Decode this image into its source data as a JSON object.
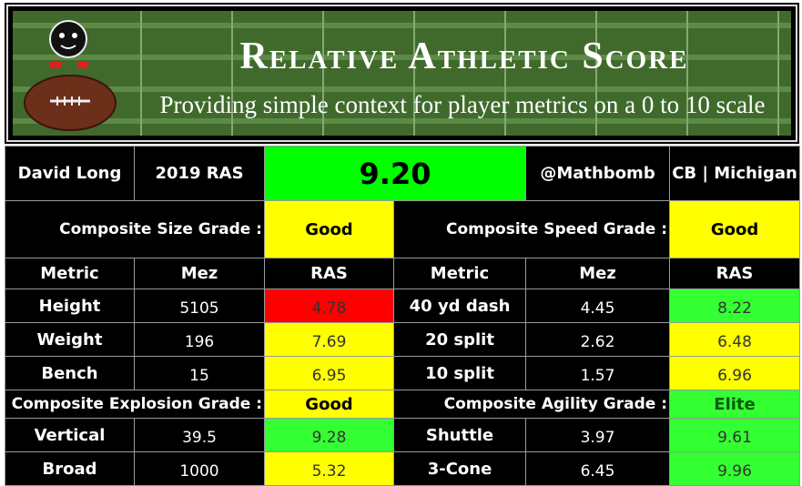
{
  "header": {
    "title": "Relative Athletic Score",
    "subtitle": "Providing simple context for player metrics on a 0 to 10 scale"
  },
  "summary": {
    "player": "David Long",
    "label": "2019 RAS",
    "score": "9.20",
    "author": "@Mathbomb",
    "position": "CB | Michigan"
  },
  "grades": [
    {
      "label": "Composite Size Grade :",
      "value": "Good"
    },
    {
      "label": "Composite Speed Grade :",
      "value": "Good"
    },
    {
      "label": "Composite Explosion Grade :",
      "value": "Good"
    },
    {
      "label": "Composite Agility Grade :",
      "value": "Elite"
    }
  ],
  "table": {
    "columns": [
      "Metric",
      "Mez",
      "RAS",
      "Metric",
      "Mez",
      "RAS"
    ],
    "rows": [
      [
        "Height",
        "5105",
        "4.78",
        "40 yd dash",
        "4.45",
        "8.22"
      ],
      [
        "Weight",
        "196",
        "7.69",
        "20 split",
        "2.62",
        "6.48"
      ],
      [
        "Bench",
        "15",
        "6.95",
        "10 split",
        "1.57",
        "6.96"
      ],
      [
        "Vertical",
        "39.5",
        "9.28",
        "Shuttle",
        "3.97",
        "9.61"
      ],
      [
        "Broad",
        "1000",
        "5.32",
        "3-Cone",
        "6.45",
        "9.96"
      ]
    ]
  }
}
